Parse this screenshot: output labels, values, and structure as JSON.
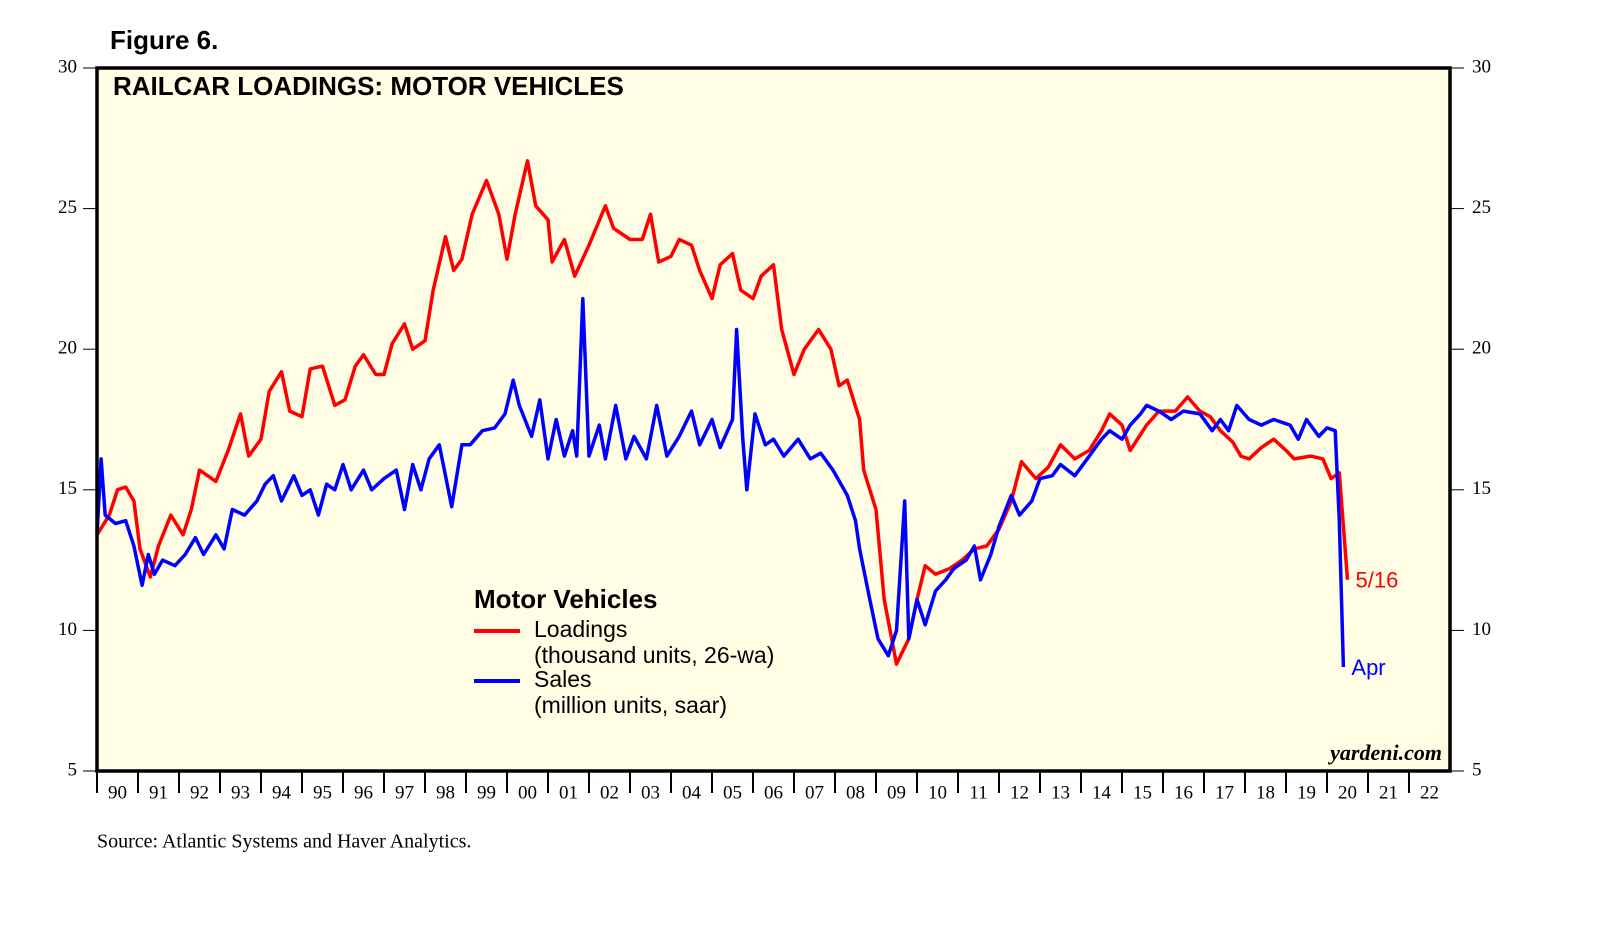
{
  "chart_data": {
    "type": "line",
    "figure_label": "Figure 6.",
    "title": "RAILCAR LOADINGS: MOTOR VEHICLES",
    "legend_title": "Motor Vehicles",
    "source": "Source: Atlantic Systems and Haver Analytics.",
    "credit": "yardeni.com",
    "background": "#fffde3",
    "xlim": [
      1990,
      2023
    ],
    "xticks": [
      {
        "value": 1990,
        "label": "90"
      },
      {
        "value": 1991,
        "label": "91"
      },
      {
        "value": 1992,
        "label": "92"
      },
      {
        "value": 1993,
        "label": "93"
      },
      {
        "value": 1994,
        "label": "94"
      },
      {
        "value": 1995,
        "label": "95"
      },
      {
        "value": 1996,
        "label": "96"
      },
      {
        "value": 1997,
        "label": "97"
      },
      {
        "value": 1998,
        "label": "98"
      },
      {
        "value": 1999,
        "label": "99"
      },
      {
        "value": 2000,
        "label": "00"
      },
      {
        "value": 2001,
        "label": "01"
      },
      {
        "value": 2002,
        "label": "02"
      },
      {
        "value": 2003,
        "label": "03"
      },
      {
        "value": 2004,
        "label": "04"
      },
      {
        "value": 2005,
        "label": "05"
      },
      {
        "value": 2006,
        "label": "06"
      },
      {
        "value": 2007,
        "label": "07"
      },
      {
        "value": 2008,
        "label": "08"
      },
      {
        "value": 2009,
        "label": "09"
      },
      {
        "value": 2010,
        "label": "10"
      },
      {
        "value": 2011,
        "label": "11"
      },
      {
        "value": 2012,
        "label": "12"
      },
      {
        "value": 2013,
        "label": "13"
      },
      {
        "value": 2014,
        "label": "14"
      },
      {
        "value": 2015,
        "label": "15"
      },
      {
        "value": 2016,
        "label": "16"
      },
      {
        "value": 2017,
        "label": "17"
      },
      {
        "value": 2018,
        "label": "18"
      },
      {
        "value": 2019,
        "label": "19"
      },
      {
        "value": 2020,
        "label": "20"
      },
      {
        "value": 2021,
        "label": "21"
      },
      {
        "value": 2022,
        "label": "22"
      }
    ],
    "ylim": [
      5,
      30
    ],
    "yticks": [
      5,
      10,
      15,
      20,
      25,
      30
    ],
    "y2lim": [
      5,
      30
    ],
    "y2ticks": [
      5,
      10,
      15,
      20,
      25,
      30
    ],
    "series": [
      {
        "name": "Loadings",
        "unit": "(thousand units, 26-wa)",
        "color": "#ff0000",
        "end_label": "5/16",
        "x": [
          1990.0,
          1990.3,
          1990.5,
          1990.7,
          1990.9,
          1991.05,
          1991.3,
          1991.5,
          1991.8,
          1992.1,
          1992.3,
          1992.5,
          1992.9,
          1993.2,
          1993.5,
          1993.7,
          1994.0,
          1994.2,
          1994.5,
          1994.7,
          1995.0,
          1995.2,
          1995.5,
          1995.8,
          1996.05,
          1996.3,
          1996.5,
          1996.8,
          1997.0,
          1997.2,
          1997.5,
          1997.7,
          1998.0,
          1998.2,
          1998.5,
          1998.7,
          1998.9,
          1999.15,
          1999.5,
          1999.8,
          2000.0,
          2000.2,
          2000.5,
          2000.7,
          2001.0,
          2001.1,
          2001.4,
          2001.65,
          2002.0,
          2002.4,
          2002.6,
          2003.0,
          2003.3,
          2003.5,
          2003.7,
          2004.0,
          2004.2,
          2004.5,
          2004.7,
          2005.0,
          2005.2,
          2005.5,
          2005.7,
          2006.0,
          2006.2,
          2006.5,
          2006.7,
          2007.0,
          2007.25,
          2007.6,
          2007.9,
          2008.1,
          2008.3,
          2008.6,
          2008.7,
          2009.0,
          2009.2,
          2009.5,
          2009.8,
          2010.0,
          2010.2,
          2010.45,
          2010.8,
          2011.1,
          2011.4,
          2011.7,
          2012.0,
          2012.3,
          2012.55,
          2012.9,
          2013.2,
          2013.5,
          2013.85,
          2014.2,
          2014.5,
          2014.7,
          2015.0,
          2015.2,
          2015.6,
          2015.9,
          2016.3,
          2016.6,
          2016.9,
          2017.15,
          2017.4,
          2017.7,
          2017.9,
          2018.1,
          2018.4,
          2018.7,
          2019.0,
          2019.2,
          2019.6,
          2019.9,
          2020.1,
          2020.3,
          2020.5
        ],
        "values": [
          13.4,
          14.1,
          15.0,
          15.1,
          14.6,
          12.9,
          11.9,
          13.0,
          14.1,
          13.4,
          14.3,
          15.7,
          15.3,
          16.4,
          17.7,
          16.2,
          16.8,
          18.5,
          19.2,
          17.8,
          17.6,
          19.3,
          19.4,
          18.0,
          18.2,
          19.4,
          19.8,
          19.1,
          19.1,
          20.2,
          20.9,
          20.0,
          20.3,
          22.1,
          24.0,
          22.8,
          23.2,
          24.8,
          26.0,
          24.8,
          23.2,
          24.8,
          26.7,
          25.1,
          24.6,
          23.1,
          23.9,
          22.6,
          23.7,
          25.1,
          24.3,
          23.9,
          23.9,
          24.8,
          23.1,
          23.3,
          23.9,
          23.7,
          22.8,
          21.8,
          23.0,
          23.4,
          22.1,
          21.8,
          22.6,
          23.0,
          20.7,
          19.1,
          20.0,
          20.7,
          20.0,
          18.7,
          18.9,
          17.5,
          15.7,
          14.3,
          11.1,
          8.8,
          9.7,
          11.1,
          12.3,
          12.0,
          12.2,
          12.5,
          12.9,
          13.0,
          13.6,
          14.6,
          16.0,
          15.4,
          15.8,
          16.6,
          16.1,
          16.4,
          17.1,
          17.7,
          17.3,
          16.4,
          17.3,
          17.8,
          17.8,
          18.3,
          17.8,
          17.6,
          17.1,
          16.7,
          16.2,
          16.1,
          16.5,
          16.8,
          16.4,
          16.1,
          16.2,
          16.1,
          15.4,
          15.6,
          11.8
        ]
      },
      {
        "name": "Sales",
        "unit": "(million units, saar)",
        "color": "#0000ff",
        "end_label": "Apr",
        "x": [
          1990.0,
          1990.1,
          1990.2,
          1990.45,
          1990.7,
          1990.9,
          1991.1,
          1991.25,
          1991.4,
          1991.6,
          1991.9,
          1992.15,
          1992.4,
          1992.6,
          1992.9,
          1993.1,
          1993.3,
          1993.6,
          1993.9,
          1994.1,
          1994.3,
          1994.5,
          1994.8,
          1995.0,
          1995.2,
          1995.4,
          1995.6,
          1995.8,
          1996.0,
          1996.2,
          1996.5,
          1996.7,
          1997.0,
          1997.3,
          1997.5,
          1997.7,
          1997.9,
          1998.1,
          1998.35,
          1998.65,
          1998.9,
          1999.1,
          1999.4,
          1999.7,
          1999.95,
          2000.15,
          2000.3,
          2000.6,
          2000.8,
          2001.0,
          2001.2,
          2001.4,
          2001.6,
          2001.7,
          2001.85,
          2002.0,
          2002.25,
          2002.4,
          2002.65,
          2002.9,
          2003.1,
          2003.4,
          2003.65,
          2003.9,
          2004.2,
          2004.5,
          2004.7,
          2005.0,
          2005.2,
          2005.5,
          2005.6,
          2005.75,
          2005.85,
          2006.05,
          2006.3,
          2006.5,
          2006.75,
          2007.1,
          2007.4,
          2007.65,
          2007.95,
          2008.3,
          2008.5,
          2008.6,
          2008.85,
          2009.05,
          2009.3,
          2009.5,
          2009.7,
          2009.8,
          2010.0,
          2010.2,
          2010.45,
          2010.7,
          2010.9,
          2011.2,
          2011.4,
          2011.55,
          2011.8,
          2012.0,
          2012.3,
          2012.5,
          2012.8,
          2013.0,
          2013.3,
          2013.5,
          2013.85,
          2014.15,
          2014.5,
          2014.7,
          2015.0,
          2015.2,
          2015.45,
          2015.6,
          2015.9,
          2016.2,
          2016.5,
          2016.9,
          2017.2,
          2017.4,
          2017.6,
          2017.8,
          2018.1,
          2018.4,
          2018.7,
          2019.1,
          2019.3,
          2019.5,
          2019.8,
          2020.0,
          2020.2,
          2020.3,
          2020.4
        ],
        "values": [
          13.4,
          16.1,
          14.1,
          13.8,
          13.9,
          13.0,
          11.6,
          12.7,
          12.0,
          12.5,
          12.3,
          12.7,
          13.3,
          12.7,
          13.4,
          12.9,
          14.3,
          14.1,
          14.6,
          15.2,
          15.5,
          14.6,
          15.5,
          14.8,
          15.0,
          14.1,
          15.2,
          15.0,
          15.9,
          15.0,
          15.7,
          15.0,
          15.4,
          15.7,
          14.3,
          15.9,
          15.0,
          16.1,
          16.6,
          14.4,
          16.6,
          16.6,
          17.1,
          17.2,
          17.7,
          18.9,
          18.0,
          16.9,
          18.2,
          16.1,
          17.5,
          16.2,
          17.1,
          16.2,
          21.8,
          16.2,
          17.3,
          16.1,
          18.0,
          16.1,
          16.9,
          16.1,
          18.0,
          16.2,
          16.9,
          17.8,
          16.6,
          17.5,
          16.5,
          17.5,
          20.7,
          16.8,
          15.0,
          17.7,
          16.6,
          16.8,
          16.2,
          16.8,
          16.1,
          16.3,
          15.7,
          14.8,
          13.9,
          12.9,
          11.1,
          9.7,
          9.1,
          10.0,
          14.6,
          9.7,
          11.1,
          10.2,
          11.4,
          11.8,
          12.2,
          12.5,
          13.0,
          11.8,
          12.7,
          13.7,
          14.8,
          14.1,
          14.6,
          15.4,
          15.5,
          15.9,
          15.5,
          16.1,
          16.8,
          17.1,
          16.8,
          17.3,
          17.7,
          18.0,
          17.8,
          17.5,
          17.8,
          17.7,
          17.1,
          17.5,
          17.1,
          18.0,
          17.5,
          17.3,
          17.5,
          17.3,
          16.8,
          17.5,
          16.9,
          17.2,
          17.1,
          13.9,
          8.7
        ]
      }
    ]
  }
}
